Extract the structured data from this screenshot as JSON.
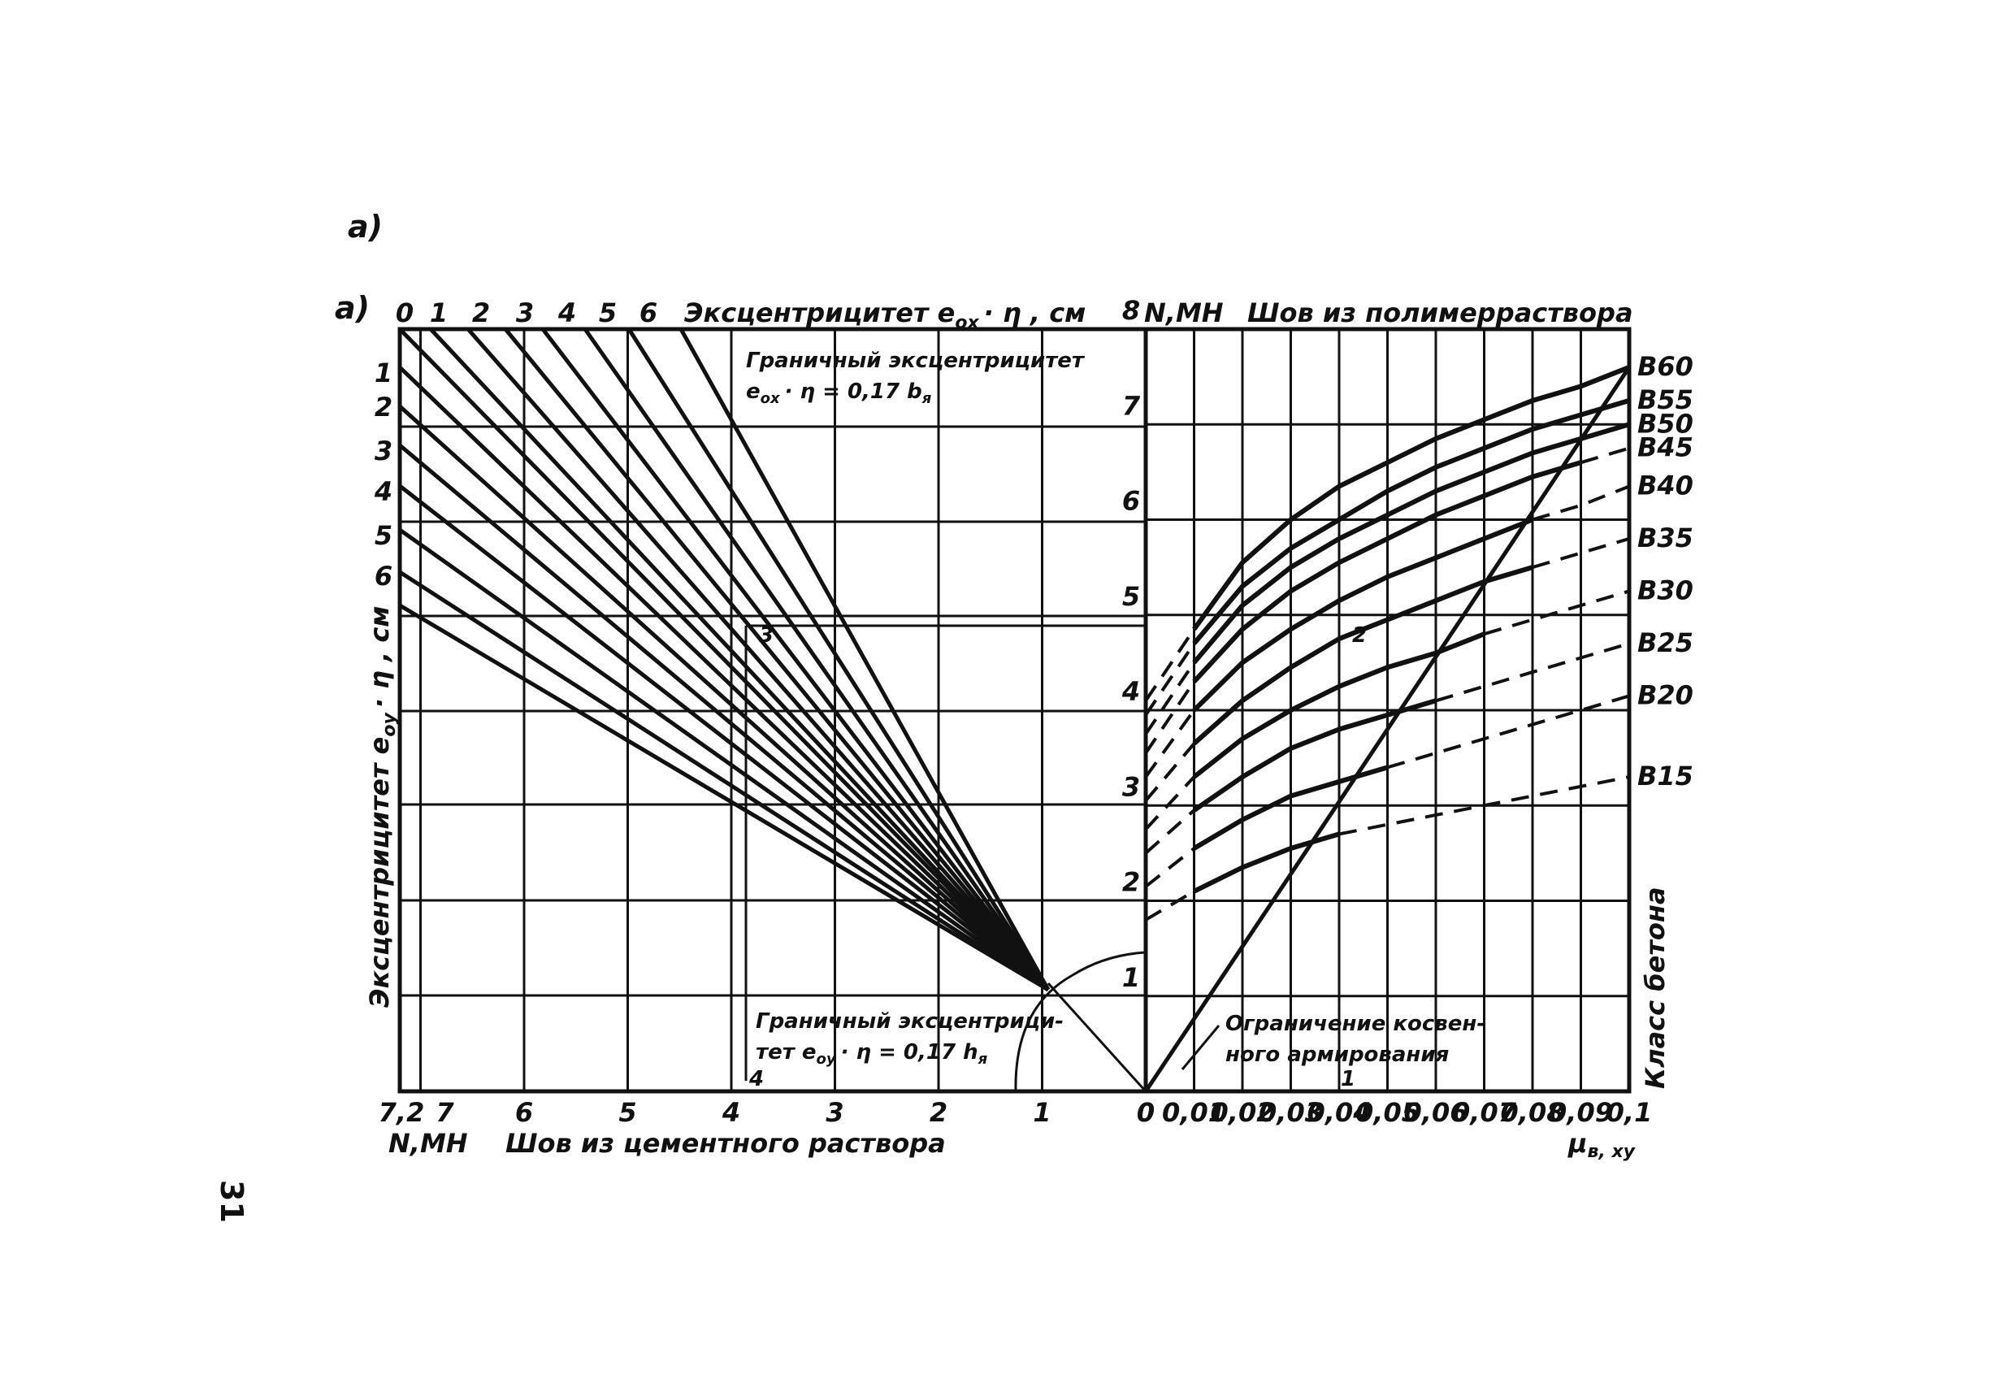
{
  "labels": {
    "figure_tag_top": "a)",
    "figure_tag": "a)",
    "page_number": "31",
    "top_left_axis": "Эксцентрицитет e",
    "top_left_axis_sub": "ox",
    "top_left_axis_tail": "· η , см",
    "left_vertical_axis": "Эксцентрицитет e",
    "left_vertical_axis_sub": "oy",
    "left_vertical_axis_tail": "· η , см",
    "top_right_unit": "N,MH",
    "top_right_title": "Шов из полимерраствора",
    "bottom_left_unit": "N,MH",
    "bottom_left_title": "Шов из цементного раствора",
    "bottom_right_unit": "μ",
    "bottom_right_unit_sub": "в, ху",
    "right_vertical_axis": "Класс бетона",
    "annot_boundary_x_1": "Граничный эксцентрицитет",
    "annot_boundary_x_2": "e",
    "annot_boundary_x_2_sub": "ox",
    "annot_boundary_x_2_tail": "· η = 0,17 b",
    "annot_boundary_x_2_sub2": "я",
    "annot_boundary_y_1": "Граничный эксцентрици-",
    "annot_boundary_y_2": "тет e",
    "annot_boundary_y_2_sub": "oy",
    "annot_boundary_y_2_tail": "· η = 0,17 h",
    "annot_boundary_y_2_sub2": "я",
    "annot_limit_1": "Ограничение косвен-",
    "annot_limit_2": "ного армирования",
    "marker_3": "3",
    "marker_2": "2",
    "marker_4": "4",
    "marker_1": "1"
  },
  "chart_data": [
    {
      "type": "line",
      "title": "",
      "x_axis": {
        "label": "Шов из цементного раствора",
        "unit": "N,MH",
        "ticks": [
          "7,2",
          "7",
          "6",
          "5",
          "4",
          "3",
          "2",
          "1",
          "0"
        ]
      },
      "top_axis": {
        "label": "Эксцентрицитет e_ox · η , см",
        "ticks": [
          "0",
          "1",
          "2",
          "3",
          "4",
          "5",
          "6"
        ]
      },
      "y_axis": {
        "label": "Эксцентрицитет e_oy · η , см",
        "ticks": [
          "1",
          "2",
          "3",
          "4",
          "5",
          "6"
        ]
      },
      "annotations": [
        "Граничный эксцентрицитет e_ox · η = 0,17 b_я",
        "Граничный эксцентрицитет e_oy · η = 0,17 h_я"
      ]
    },
    {
      "type": "line",
      "title": "Шов из полимерраствора",
      "x_axis": {
        "label": "μ_в, ху",
        "ticks": [
          "0",
          "0,01",
          "0,02",
          "0,03",
          "0,04",
          "0,05",
          "0,06",
          "0,07",
          "0,08",
          "0,09",
          "0,1"
        ],
        "range": [
          0,
          0.1
        ]
      },
      "y_axis": {
        "label": "N,MH",
        "ticks": [
          "1",
          "2",
          "3",
          "4",
          "5",
          "6",
          "7",
          "8"
        ],
        "range": [
          0,
          8
        ]
      },
      "right_label": "Класс бетона",
      "series": [
        {
          "name": "B60",
          "x": [
            0,
            0.01,
            0.02,
            0.03,
            0.04,
            0.05,
            0.06,
            0.07,
            0.08,
            0.09,
            0.1
          ],
          "y": [
            4.1,
            4.85,
            5.55,
            6.0,
            6.35,
            6.6,
            6.85,
            7.05,
            7.25,
            7.4,
            7.6
          ]
        },
        {
          "name": "B55",
          "x": [
            0,
            0.01,
            0.02,
            0.03,
            0.04,
            0.05,
            0.06,
            0.07,
            0.08,
            0.09,
            0.1
          ],
          "y": [
            3.95,
            4.7,
            5.3,
            5.7,
            6.0,
            6.3,
            6.55,
            6.75,
            6.95,
            7.1,
            7.25
          ]
        },
        {
          "name": "B50",
          "x": [
            0,
            0.01,
            0.02,
            0.03,
            0.04,
            0.05,
            0.06,
            0.07,
            0.08,
            0.09,
            0.1
          ],
          "y": [
            3.75,
            4.5,
            5.1,
            5.5,
            5.8,
            6.05,
            6.3,
            6.5,
            6.7,
            6.85,
            7.0
          ]
        },
        {
          "name": "B45",
          "x": [
            0,
            0.01,
            0.02,
            0.03,
            0.04,
            0.05,
            0.06,
            0.07,
            0.08,
            0.09,
            0.1
          ],
          "y": [
            3.55,
            4.3,
            4.85,
            5.25,
            5.55,
            5.8,
            6.05,
            6.25,
            6.45,
            6.6,
            6.75
          ]
        },
        {
          "name": "B40",
          "x": [
            0,
            0.01,
            0.02,
            0.03,
            0.04,
            0.05,
            0.06,
            0.07,
            0.08,
            0.09,
            0.1
          ],
          "y": [
            3.3,
            4.0,
            4.5,
            4.85,
            5.15,
            5.4,
            5.6,
            5.8,
            6.0,
            6.15,
            6.35
          ]
        },
        {
          "name": "B35",
          "x": [
            0,
            0.01,
            0.02,
            0.03,
            0.04,
            0.05,
            0.06,
            0.07,
            0.08,
            0.09,
            0.1
          ],
          "y": [
            3.05,
            3.65,
            4.1,
            4.45,
            4.75,
            4.95,
            5.15,
            5.35,
            5.5,
            5.65,
            5.8
          ]
        },
        {
          "name": "B30",
          "x": [
            0,
            0.01,
            0.02,
            0.03,
            0.04,
            0.05,
            0.06,
            0.07,
            0.08,
            0.09,
            0.1
          ],
          "y": [
            2.75,
            3.3,
            3.7,
            4.0,
            4.25,
            4.45,
            4.6,
            4.8,
            4.95,
            5.1,
            5.25
          ]
        },
        {
          "name": "B25",
          "x": [
            0,
            0.01,
            0.02,
            0.03,
            0.04,
            0.05,
            0.06,
            0.07,
            0.08,
            0.09,
            0.1
          ],
          "y": [
            2.5,
            2.95,
            3.3,
            3.6,
            3.8,
            3.95,
            4.1,
            4.25,
            4.4,
            4.55,
            4.7
          ]
        },
        {
          "name": "B20",
          "x": [
            0,
            0.01,
            0.02,
            0.03,
            0.04,
            0.05,
            0.06,
            0.07,
            0.08,
            0.09,
            0.1
          ],
          "y": [
            2.15,
            2.55,
            2.85,
            3.1,
            3.25,
            3.4,
            3.55,
            3.7,
            3.85,
            4.0,
            4.15
          ]
        },
        {
          "name": "B15",
          "x": [
            0,
            0.01,
            0.02,
            0.03,
            0.04,
            0.05,
            0.06,
            0.07,
            0.08,
            0.09,
            0.1
          ],
          "y": [
            1.8,
            2.1,
            2.35,
            2.55,
            2.7,
            2.8,
            2.9,
            3.0,
            3.1,
            3.2,
            3.3
          ]
        }
      ],
      "limit_line": {
        "name": "Ограничение косвенного армирования",
        "x": [
          0,
          0.1
        ],
        "y": [
          0,
          7.6
        ]
      }
    }
  ]
}
